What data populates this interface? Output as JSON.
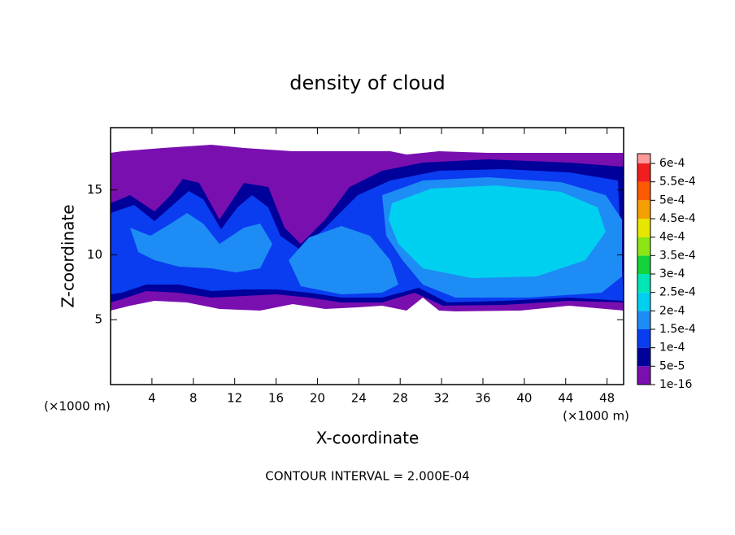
{
  "chart_data": {
    "type": "contour",
    "title": "density of cloud",
    "xlabel": "X-coordinate",
    "ylabel": "Z-coordinate",
    "x_unit_left": "(×1000 m)",
    "x_unit_right": "(×1000 m)",
    "footer": "CONTOUR INTERVAL = 2.000E-04",
    "xlim": [
      0,
      49.6
    ],
    "xticks": [
      4,
      8,
      12,
      16,
      20,
      24,
      28,
      32,
      36,
      40,
      44,
      48
    ],
    "ylim": [
      0,
      19.8
    ],
    "yticks": [
      5,
      10,
      15
    ],
    "grid": false,
    "colorbar_levels": [
      {
        "value": 1e-16,
        "label": "1e-16"
      },
      {
        "value": 5e-05,
        "label": "5e-5"
      },
      {
        "value": 0.0001,
        "label": "1e-4"
      },
      {
        "value": 0.00015,
        "label": "1.5e-4"
      },
      {
        "value": 0.0002,
        "label": "2e-4"
      },
      {
        "value": 0.00025,
        "label": "2.5e-4"
      },
      {
        "value": 0.0003,
        "label": "3e-4"
      },
      {
        "value": 0.00035,
        "label": "3.5e-4"
      },
      {
        "value": 0.0004,
        "label": "4e-4"
      },
      {
        "value": 0.00045,
        "label": "4.5e-4"
      },
      {
        "value": 0.0005,
        "label": "5e-4"
      },
      {
        "value": 0.00055,
        "label": "5.5e-4"
      },
      {
        "value": 0.0006,
        "label": "6e-4"
      }
    ],
    "colorbar_colors": [
      "#7a0fb0",
      "#00009a",
      "#0a3cf0",
      "#1e8cf5",
      "#00d0f0",
      "#00e6b4",
      "#14d23c",
      "#8ce614",
      "#e6e600",
      "#f5a000",
      "#ff5a00",
      "#f01e1e",
      "#ff9a9a"
    ]
  }
}
